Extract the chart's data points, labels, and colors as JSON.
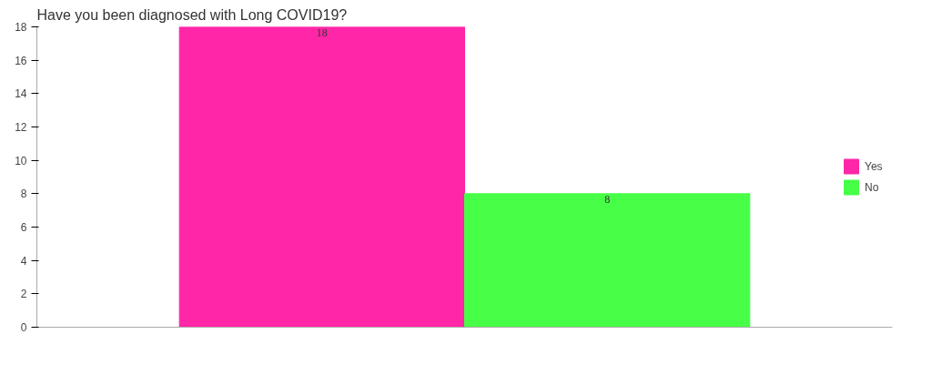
{
  "chart_data": {
    "type": "bar",
    "title": "Have you been diagnosed with Long COVID19?",
    "categories": [
      null
    ],
    "series": [
      {
        "name": "Yes",
        "color": "#ff26a8",
        "values": [
          18
        ]
      },
      {
        "name": "No",
        "color": "#47ff47",
        "values": [
          8
        ]
      }
    ],
    "ylim": [
      0,
      18
    ],
    "yticks": [
      0,
      2,
      4,
      6,
      8,
      10,
      12,
      14,
      16,
      18
    ],
    "grid": false,
    "legend": "right",
    "data_labels": true
  }
}
